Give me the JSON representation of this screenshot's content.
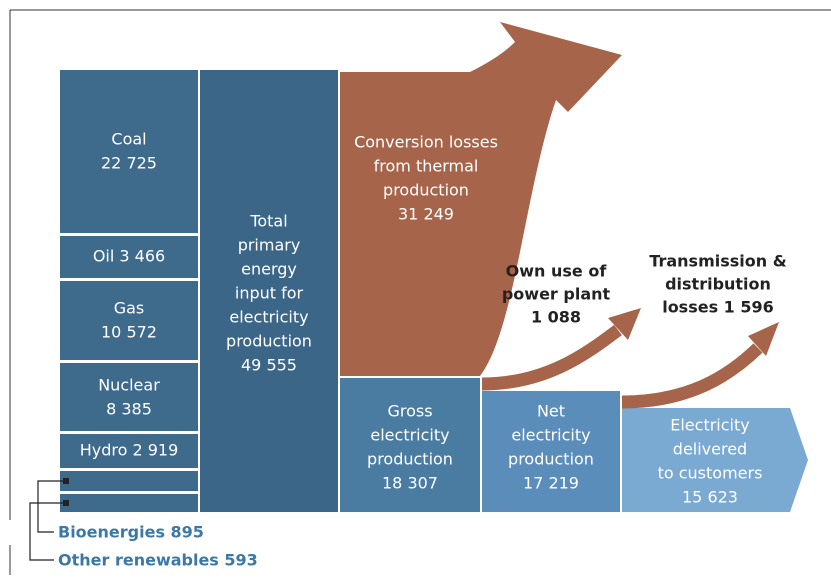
{
  "nodes": [
    {
      "lines": [
        "Coal",
        "22 725"
      ]
    },
    {
      "lines": [
        "Oil 3 466"
      ]
    },
    {
      "lines": [
        "Gas",
        "10 572"
      ]
    },
    {
      "lines": [
        "Nuclear",
        "8 385"
      ]
    },
    {
      "lines": [
        "Hydro 2 919"
      ]
    },
    {
      "lines": [
        "Total",
        "primary",
        "energy",
        "input for",
        "electricity",
        "production",
        "49 555"
      ]
    },
    {
      "lines": [
        "Conversion losses",
        "from thermal",
        "production",
        "31 249"
      ]
    },
    {
      "lines": [
        "Gross",
        "electricity",
        "production",
        "18 307"
      ]
    },
    {
      "lines": [
        "Net",
        "electricity",
        "production",
        "17 219"
      ]
    },
    {
      "lines": [
        "Electricity",
        "delivered",
        "to customers",
        "15 623"
      ]
    },
    {
      "lines": [
        "Own use of",
        "power plant",
        "1 088"
      ]
    },
    {
      "lines": [
        "Transmission &",
        "distribution",
        "losses 1 596"
      ]
    }
  ],
  "legend": [
    "Bioenergies 895",
    "Other renewables 593"
  ]
}
